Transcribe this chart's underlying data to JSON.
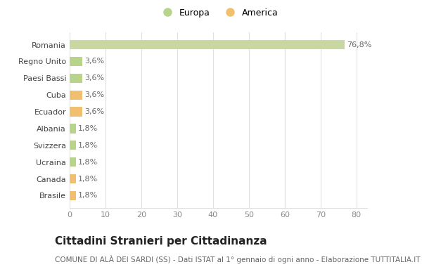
{
  "categories": [
    "Brasile",
    "Canada",
    "Ucraina",
    "Svizzera",
    "Albania",
    "Ecuador",
    "Cuba",
    "Paesi Bassi",
    "Regno Unito",
    "Romania"
  ],
  "values": [
    1.8,
    1.8,
    1.8,
    1.8,
    1.8,
    3.6,
    3.6,
    3.6,
    3.6,
    76.8
  ],
  "labels": [
    "1,8%",
    "1,8%",
    "1,8%",
    "1,8%",
    "1,8%",
    "3,6%",
    "3,6%",
    "3,6%",
    "3,6%",
    "76,8%"
  ],
  "colors": [
    "#f0c070",
    "#f0c070",
    "#b8d48a",
    "#b8d48a",
    "#b8d48a",
    "#f0c070",
    "#f0c070",
    "#b8d48a",
    "#b8d48a",
    "#c8d8a0"
  ],
  "color_europa": "#b8d48a",
  "color_america": "#f0c070",
  "xlim": [
    0,
    83
  ],
  "xticks": [
    0,
    10,
    20,
    30,
    40,
    50,
    60,
    70,
    80
  ],
  "title": "Cittadini Stranieri per Cittadinanza",
  "subtitle": "COMUNE DI ALÀ DEI SARDI (SS) - Dati ISTAT al 1° gennaio di ogni anno - Elaborazione TUTTITALIA.IT",
  "legend_europa": "Europa",
  "legend_america": "America",
  "bg_color": "#ffffff",
  "grid_color": "#e0e0e0",
  "bar_height": 0.55,
  "label_fontsize": 8,
  "title_fontsize": 11,
  "subtitle_fontsize": 7.5,
  "tick_fontsize": 8,
  "ytick_fontsize": 8
}
